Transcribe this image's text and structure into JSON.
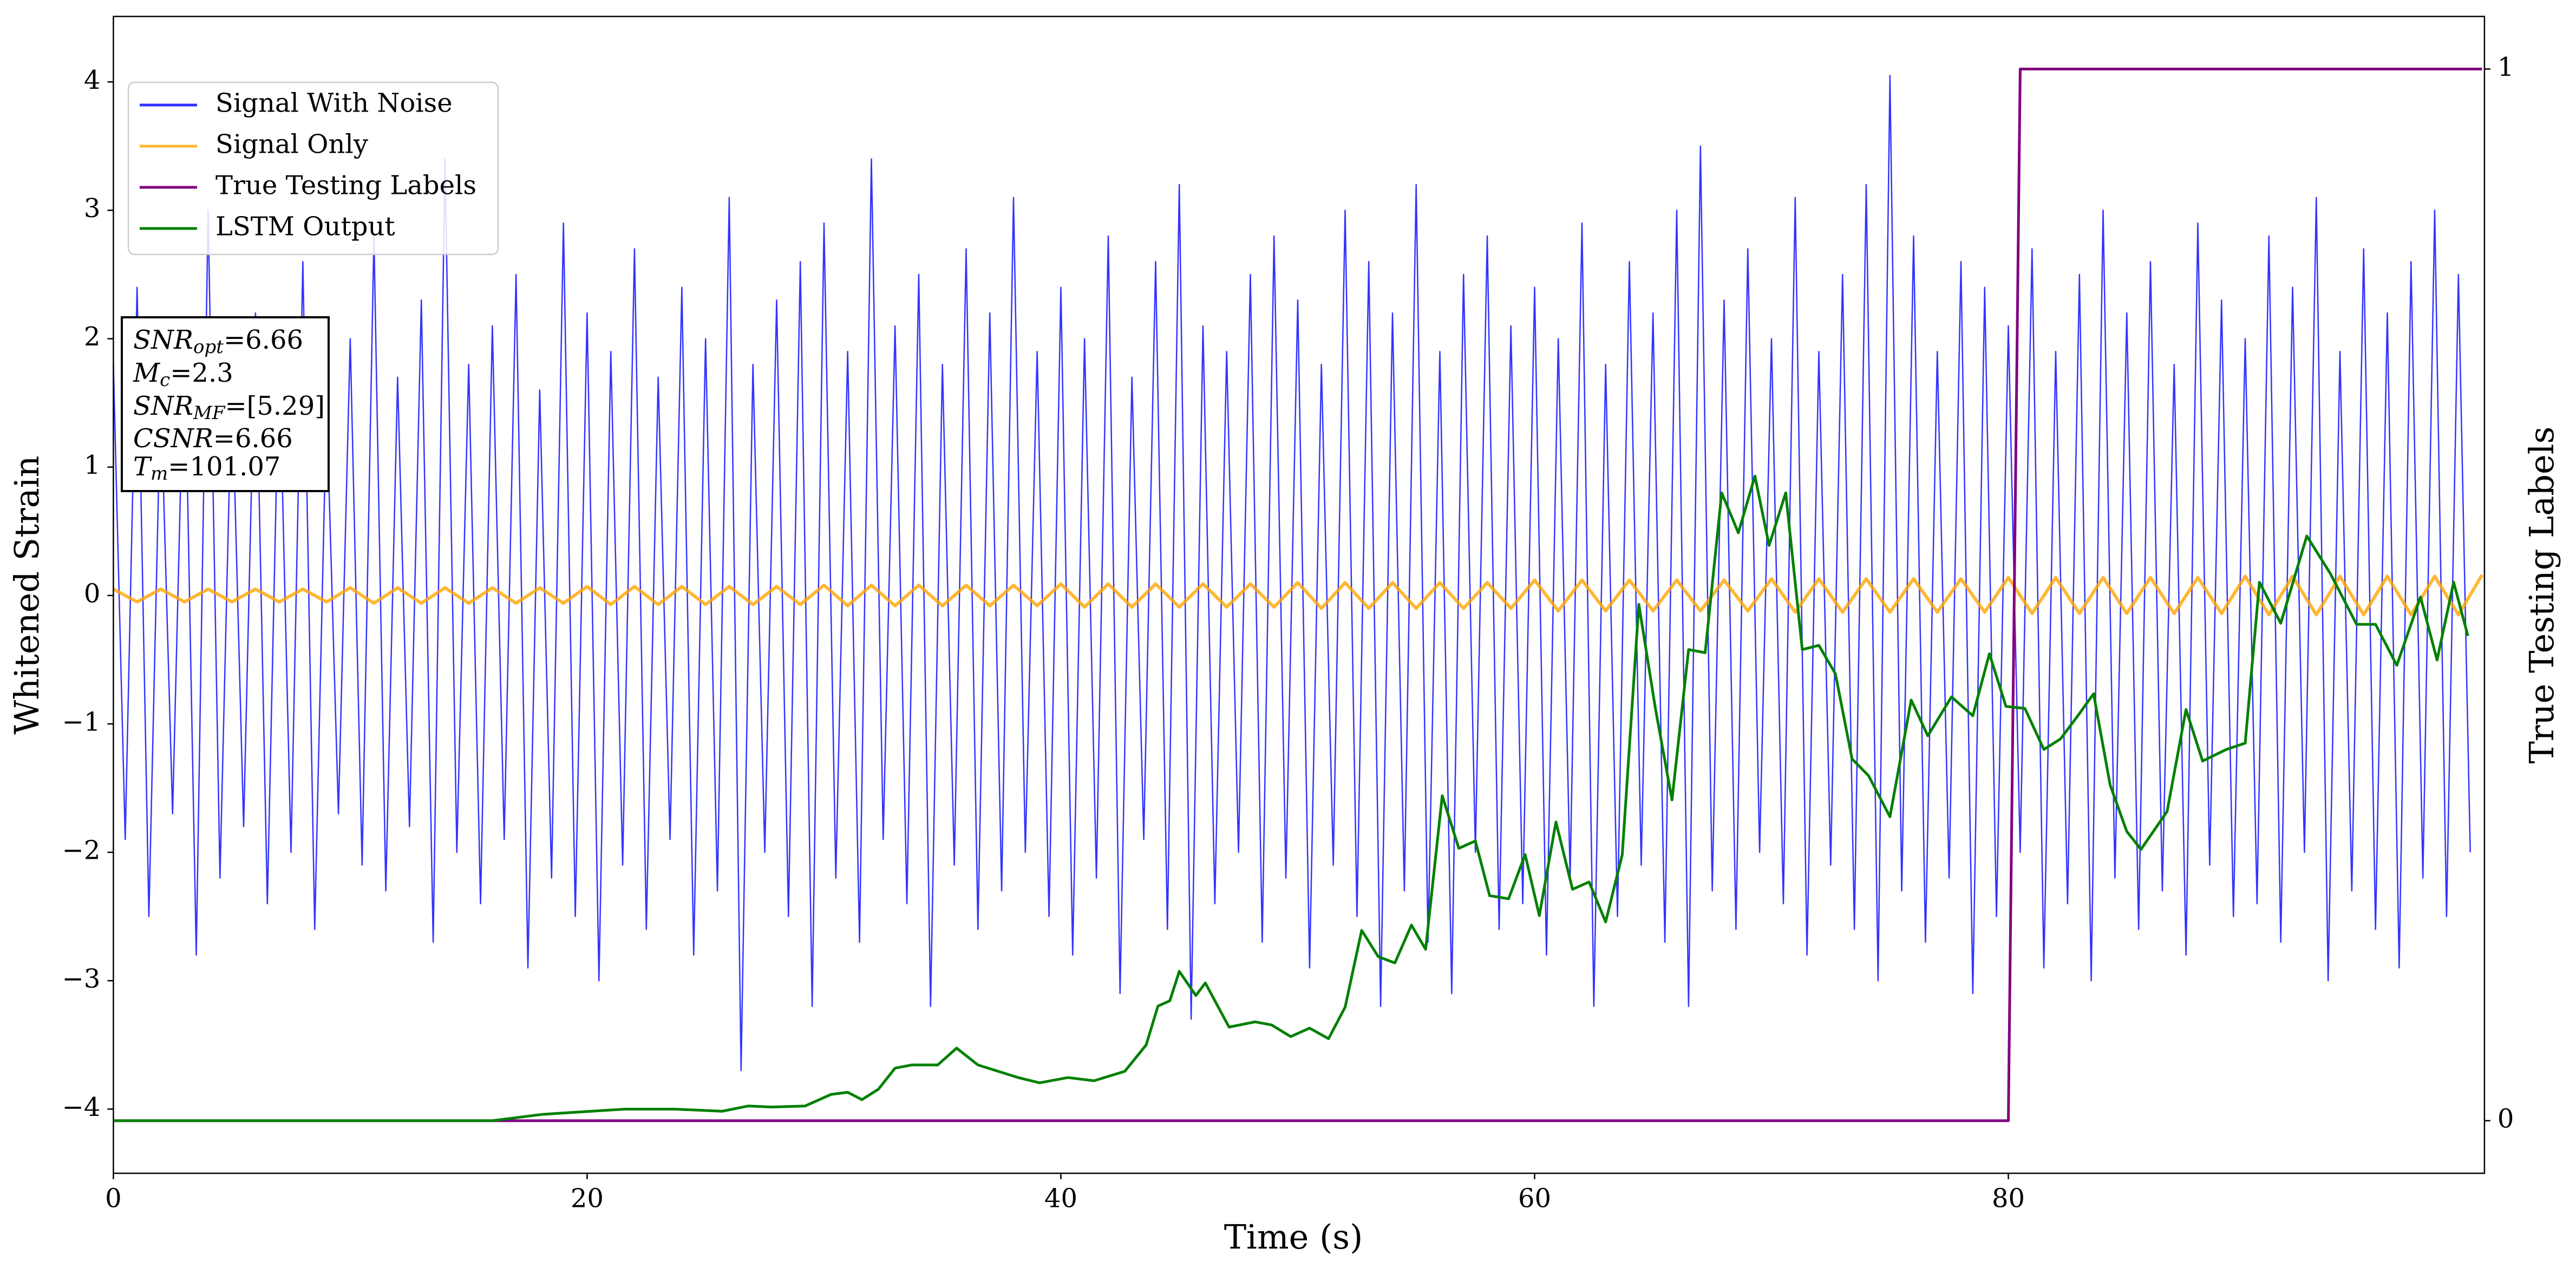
{
  "chart_data": {
    "type": "line",
    "xlabel": "Time (s)",
    "ylabel": "Whitened Strain",
    "y2label": "True Testing Labels",
    "xlim": [
      0,
      100.1
    ],
    "xticks": [
      0,
      20,
      40,
      60,
      80
    ],
    "ylim": [
      -4.5,
      4.51
    ],
    "yticks": [
      {
        "value": -4,
        "label": "−4"
      },
      {
        "value": -3,
        "label": "−3"
      },
      {
        "value": -2,
        "label": "−2"
      },
      {
        "value": -1,
        "label": "−1"
      },
      0,
      1,
      2,
      3,
      4
    ],
    "y2lim": [
      -0.05,
      1.05
    ],
    "y2ticks": [
      0,
      1
    ],
    "legend": "upper left",
    "annotation": {
      "lines": [
        {
          "var": "SNR",
          "sub": "opt",
          "text": "=6.66"
        },
        {
          "var": "M",
          "sub": "c",
          "text": "=2.3"
        },
        {
          "var": "SNR",
          "sub": "MF",
          "text": "=[5.29]"
        },
        {
          "var": "CSNR",
          "text": "=6.66"
        },
        {
          "var": "T",
          "sub": "m",
          "text": "=101.07"
        }
      ]
    },
    "series": [
      {
        "name": "Signal With Noise",
        "color": "#3333ff",
        "x": [
          0,
          0.5,
          1,
          1.5,
          2,
          2.5,
          3,
          3.5,
          4,
          4.5,
          5,
          5.5,
          6,
          6.5,
          7,
          7.5,
          8,
          8.5,
          9,
          9.5,
          10,
          10.5,
          11,
          11.5,
          12,
          12.5,
          13,
          13.5,
          14,
          14.5,
          15,
          15.5,
          16,
          16.5,
          17,
          17.5,
          18,
          18.5,
          19,
          19.5,
          20,
          20.5,
          21,
          21.5,
          22,
          22.5,
          23,
          23.5,
          24,
          24.5,
          25,
          25.5,
          26,
          26.5,
          27,
          27.5,
          28,
          28.5,
          29,
          29.5,
          30,
          30.5,
          31,
          31.5,
          32,
          32.5,
          33,
          33.5,
          34,
          34.5,
          35,
          35.5,
          36,
          36.5,
          37,
          37.5,
          38,
          38.5,
          39,
          39.5,
          40,
          40.5,
          41,
          41.5,
          42,
          42.5,
          43,
          43.5,
          44,
          44.5,
          45,
          45.5,
          46,
          46.5,
          47,
          47.5,
          48,
          48.5,
          49,
          49.5,
          50,
          50.5,
          51,
          51.5,
          52,
          52.5,
          53,
          53.5,
          54,
          54.5,
          55,
          55.5,
          56,
          56.5,
          57,
          57.5,
          58,
          58.5,
          59,
          59.5,
          60,
          60.5,
          61,
          61.5,
          62,
          62.5,
          63,
          63.5,
          64,
          64.5,
          65,
          65.5,
          66,
          66.5,
          67,
          67.5,
          68,
          68.5,
          69,
          69.5,
          70,
          70.5,
          71,
          71.5,
          72,
          72.5,
          73,
          73.5,
          74,
          74.5,
          75,
          75.5,
          76,
          76.5,
          77,
          77.5,
          78,
          78.5,
          79,
          79.5,
          80,
          80.5,
          81,
          81.5,
          82,
          82.5,
          83,
          83.5,
          84,
          84.5,
          85,
          85.5,
          86,
          86.5,
          87,
          87.5,
          88,
          88.5,
          89,
          89.5,
          90,
          90.5,
          91,
          91.5,
          92,
          92.5,
          93,
          93.5,
          94,
          94.5,
          95,
          95.5,
          96,
          96.5,
          97,
          97.5,
          98,
          98.5,
          99,
          99.5
        ],
        "values": [
          1.8,
          -1.9,
          2.4,
          -2.5,
          1.6,
          -1.7,
          2.1,
          -2.8,
          3.0,
          -2.2,
          1.7,
          -1.8,
          2.2,
          -2.4,
          1.9,
          -2.0,
          2.6,
          -2.6,
          1.5,
          -1.7,
          2.0,
          -2.1,
          2.8,
          -2.3,
          1.7,
          -1.8,
          2.3,
          -2.7,
          3.4,
          -2.0,
          1.8,
          -2.4,
          2.1,
          -1.9,
          2.5,
          -2.9,
          1.6,
          -2.2,
          2.9,
          -2.5,
          2.2,
          -3.0,
          1.9,
          -2.1,
          2.7,
          -2.6,
          1.7,
          -1.9,
          2.4,
          -2.8,
          2.0,
          -2.3,
          3.1,
          -3.7,
          1.8,
          -2.0,
          2.3,
          -2.5,
          2.6,
          -3.2,
          2.9,
          -2.2,
          1.9,
          -2.7,
          3.4,
          -1.9,
          2.1,
          -2.4,
          2.5,
          -3.2,
          1.8,
          -2.1,
          2.7,
          -2.6,
          2.2,
          -2.3,
          3.1,
          -2.0,
          1.9,
          -2.5,
          2.4,
          -2.8,
          2.0,
          -2.2,
          2.8,
          -3.1,
          1.7,
          -1.9,
          2.6,
          -2.6,
          3.2,
          -3.3,
          2.1,
          -2.4,
          1.9,
          -2.0,
          2.5,
          -2.7,
          2.8,
          -2.2,
          2.3,
          -2.9,
          1.8,
          -2.1,
          3.0,
          -2.5,
          2.6,
          -3.2,
          2.2,
          -2.3,
          3.2,
          -2.7,
          1.9,
          -3.1,
          2.5,
          -2.0,
          2.8,
          -2.6,
          2.1,
          -2.4,
          2.4,
          -2.8,
          2.0,
          -2.2,
          2.9,
          -3.2,
          1.8,
          -2.5,
          2.6,
          -2.1,
          2.2,
          -2.7,
          3.0,
          -3.2,
          3.5,
          -2.3,
          2.3,
          -2.6,
          2.7,
          -2.0,
          2.0,
          -2.4,
          3.1,
          -2.8,
          1.9,
          -2.1,
          2.5,
          -2.6,
          3.2,
          -3.0,
          4.05,
          -2.3,
          2.8,
          -2.7,
          1.9,
          -2.2,
          2.6,
          -3.1,
          2.4,
          -2.5,
          2.1,
          -2.0,
          2.7,
          -2.9,
          1.9,
          -2.4,
          2.5,
          -3.0,
          3.0,
          -2.2,
          2.2,
          -2.6,
          2.6,
          -2.3,
          1.8,
          -2.8,
          2.9,
          -2.1,
          2.3,
          -2.5,
          2.0,
          -2.4,
          2.8,
          -2.7,
          2.4,
          -2.0,
          3.1,
          -3.0,
          1.9,
          -2.3,
          2.7,
          -2.6,
          2.2,
          -2.9,
          2.6,
          -2.2,
          3.0,
          -2.5,
          2.5,
          -2.0
        ]
      },
      {
        "name": "Signal Only",
        "color": "#ffa500",
        "x": [
          0,
          1,
          2,
          3,
          4,
          5,
          6,
          7,
          8,
          9,
          10,
          11,
          12,
          13,
          14,
          15,
          16,
          17,
          18,
          19,
          20,
          21,
          22,
          23,
          24,
          25,
          26,
          27,
          28,
          29,
          30,
          31,
          32,
          33,
          34,
          35,
          36,
          37,
          38,
          39,
          40,
          41,
          42,
          43,
          44,
          45,
          46,
          47,
          48,
          49,
          50,
          51,
          52,
          53,
          54,
          55,
          56,
          57,
          58,
          59,
          60,
          61,
          62,
          63,
          64,
          65,
          66,
          67,
          68,
          69,
          70,
          71,
          72,
          73,
          74,
          75,
          76,
          77,
          78,
          79,
          80,
          81,
          82,
          83,
          84,
          85,
          86,
          87,
          88,
          89,
          90,
          91,
          92,
          93,
          94,
          95,
          96,
          97,
          98,
          99,
          100
        ],
        "values": [
          0.05,
          -0.05,
          0.05,
          -0.05,
          0.05,
          -0.05,
          0.05,
          -0.05,
          0.05,
          -0.05,
          0.06,
          -0.06,
          0.06,
          -0.06,
          0.06,
          -0.06,
          0.06,
          -0.06,
          0.06,
          -0.06,
          0.07,
          -0.07,
          0.07,
          -0.07,
          0.07,
          -0.07,
          0.07,
          -0.07,
          0.07,
          -0.07,
          0.08,
          -0.08,
          0.08,
          -0.08,
          0.08,
          -0.08,
          0.08,
          -0.08,
          0.08,
          -0.08,
          0.09,
          -0.09,
          0.09,
          -0.09,
          0.09,
          -0.09,
          0.09,
          -0.09,
          0.09,
          -0.09,
          0.1,
          -0.1,
          0.1,
          -0.1,
          0.1,
          -0.1,
          0.1,
          -0.1,
          0.1,
          -0.1,
          0.12,
          -0.12,
          0.12,
          -0.12,
          0.12,
          -0.12,
          0.12,
          -0.12,
          0.12,
          -0.12,
          0.13,
          -0.13,
          0.13,
          -0.13,
          0.13,
          -0.13,
          0.13,
          -0.13,
          0.13,
          -0.13,
          0.14,
          -0.14,
          0.14,
          -0.14,
          0.14,
          -0.14,
          0.14,
          -0.14,
          0.14,
          -0.14,
          0.15,
          -0.15,
          0.15,
          -0.15,
          0.15,
          -0.15,
          0.15,
          -0.15,
          0.15,
          -0.15,
          0.16
        ]
      },
      {
        "name": "True Testing Labels",
        "color": "#800080",
        "axis": "y2",
        "x": [
          0,
          80,
          80.5,
          100
        ],
        "values": [
          0,
          0,
          1,
          1
        ]
      },
      {
        "name": "LSTM Output",
        "color": "#008000",
        "axis": "y2",
        "x": [
          0,
          16,
          18.1,
          19.5,
          21.6,
          23.7,
          25.7,
          26.8,
          27.8,
          29.2,
          30.3,
          31.0,
          31.6,
          32.3,
          33.0,
          33.7,
          34.8,
          35.6,
          36.5,
          38.2,
          39.1,
          40.3,
          41.4,
          42.7,
          43.6,
          44.1,
          44.6,
          45.0,
          45.7,
          46.1,
          47.1,
          48.2,
          48.9,
          49.7,
          50.5,
          51.3,
          52.0,
          52.7,
          53.4,
          54.1,
          54.8,
          55.4,
          56.1,
          56.8,
          57.5,
          58.1,
          58.9,
          59.6,
          60.2,
          60.9,
          61.6,
          62.3,
          63.0,
          63.7,
          64.4,
          65.1,
          65.8,
          66.5,
          67.2,
          67.9,
          68.6,
          69.3,
          69.9,
          70.6,
          71.3,
          72.0,
          72.7,
          73.4,
          74.1,
          75.0,
          75.9,
          76.6,
          77.6,
          78.5,
          79.2,
          79.9,
          80.7,
          81.5,
          82.2,
          82.9,
          83.6,
          84.3,
          85.0,
          85.6,
          86.7,
          87.5,
          88.2,
          89.2,
          90.0,
          90.6,
          91.5,
          92.6,
          93.6,
          94.7,
          95.5,
          96.4,
          97.4,
          98.1,
          98.8,
          99.4
        ],
        "values": [
          0,
          0,
          0.006,
          0.008,
          0.011,
          0.011,
          0.009,
          0.014,
          0.013,
          0.014,
          0.025,
          0.027,
          0.02,
          0.03,
          0.05,
          0.053,
          0.053,
          0.069,
          0.053,
          0.041,
          0.036,
          0.041,
          0.038,
          0.047,
          0.072,
          0.109,
          0.114,
          0.142,
          0.119,
          0.131,
          0.089,
          0.094,
          0.091,
          0.08,
          0.088,
          0.078,
          0.108,
          0.181,
          0.156,
          0.15,
          0.186,
          0.163,
          0.309,
          0.259,
          0.266,
          0.214,
          0.211,
          0.253,
          0.195,
          0.284,
          0.22,
          0.227,
          0.189,
          0.253,
          0.491,
          0.392,
          0.305,
          0.448,
          0.445,
          0.597,
          0.559,
          0.613,
          0.547,
          0.597,
          0.448,
          0.452,
          0.425,
          0.344,
          0.328,
          0.289,
          0.4,
          0.366,
          0.403,
          0.385,
          0.444,
          0.394,
          0.392,
          0.353,
          0.363,
          0.384,
          0.406,
          0.319,
          0.275,
          0.258,
          0.294,
          0.391,
          0.342,
          0.353,
          0.359,
          0.512,
          0.473,
          0.556,
          0.52,
          0.472,
          0.472,
          0.433,
          0.498,
          0.438,
          0.512,
          0.461
        ]
      }
    ]
  }
}
